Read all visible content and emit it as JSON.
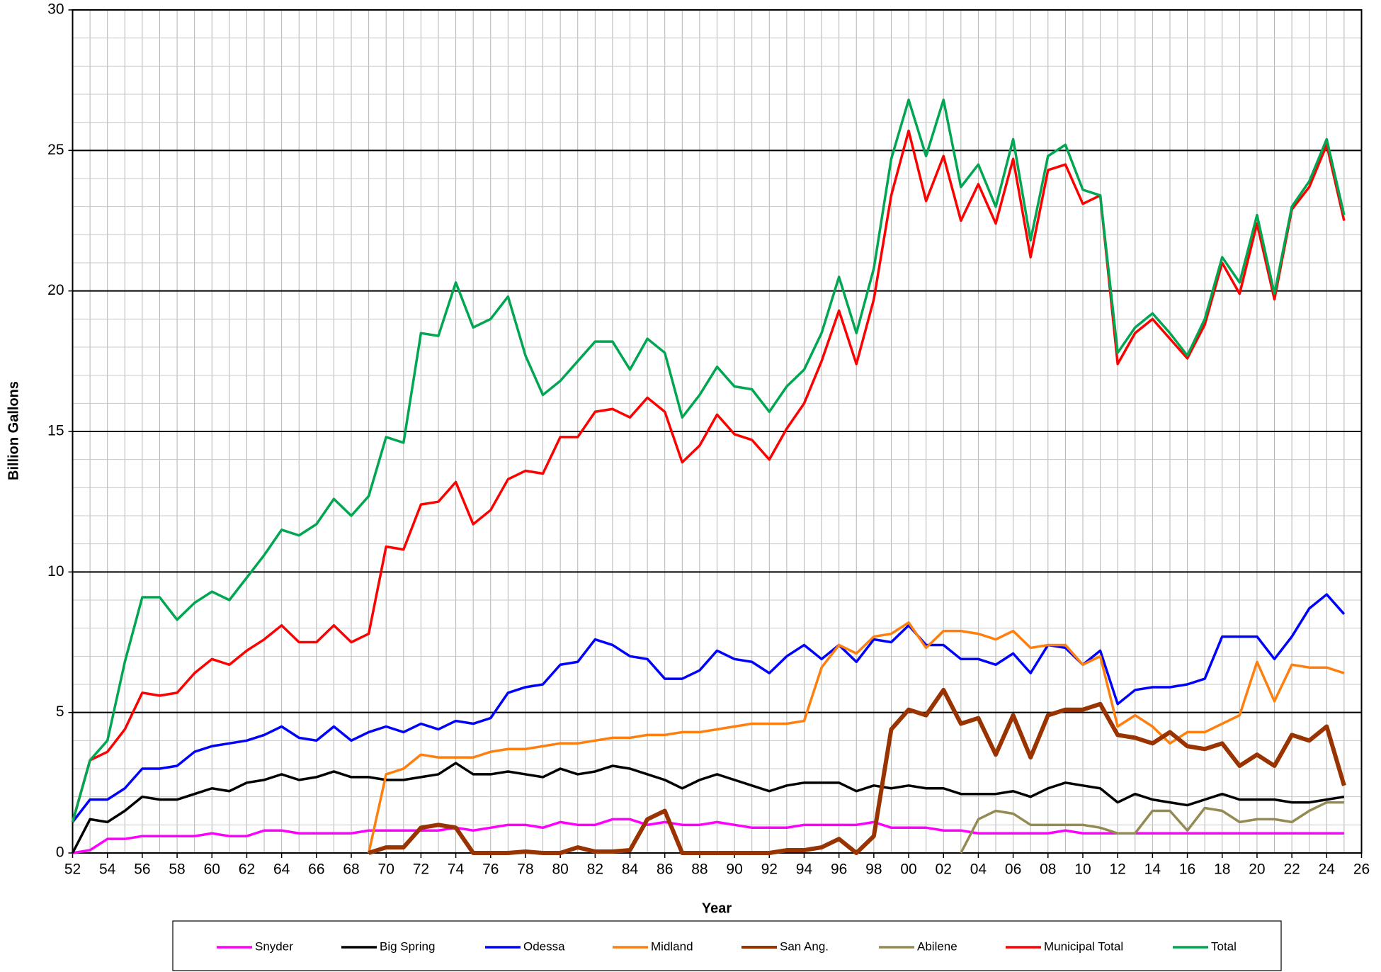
{
  "chart_data": {
    "type": "line",
    "xlabel": "Year",
    "ylabel": "Billion Gallons",
    "x": [
      1952,
      1953,
      1954,
      1955,
      1956,
      1957,
      1958,
      1959,
      1960,
      1961,
      1962,
      1963,
      1964,
      1965,
      1966,
      1967,
      1968,
      1969,
      1970,
      1971,
      1972,
      1973,
      1974,
      1975,
      1976,
      1977,
      1978,
      1979,
      1980,
      1981,
      1982,
      1983,
      1984,
      1985,
      1986,
      1987,
      1988,
      1989,
      1990,
      1991,
      1992,
      1993,
      1994,
      1995,
      1996,
      1997,
      1998,
      1999,
      2000,
      2001,
      2002,
      2003,
      2004,
      2005,
      2006,
      2007,
      2008,
      2009,
      2010,
      2011,
      2012,
      2013,
      2014,
      2015,
      2016,
      2017,
      2018,
      2019,
      2020,
      2021,
      2022,
      2023,
      2024,
      2025
    ],
    "series": [
      {
        "name": "Snyder",
        "color": "#ff00ff",
        "linewidth": 3.5,
        "values": [
          0,
          0.1,
          0.5,
          0.5,
          0.6,
          0.6,
          0.6,
          0.6,
          0.7,
          0.6,
          0.6,
          0.8,
          0.8,
          0.7,
          0.7,
          0.7,
          0.7,
          0.8,
          0.8,
          0.8,
          0.8,
          0.8,
          0.9,
          0.8,
          0.9,
          1.0,
          1.0,
          0.9,
          1.1,
          1.0,
          1.0,
          1.2,
          1.2,
          1.0,
          1.1,
          1.0,
          1.0,
          1.1,
          1.0,
          0.9,
          0.9,
          0.9,
          1.0,
          1.0,
          1.0,
          1.0,
          1.1,
          0.9,
          0.9,
          0.9,
          0.8,
          0.8,
          0.7,
          0.7,
          0.7,
          0.7,
          0.7,
          0.8,
          0.7,
          0.7,
          0.7,
          0.7,
          0.7,
          0.7,
          0.7,
          0.7,
          0.7,
          0.7,
          0.7,
          0.7,
          0.7,
          0.7,
          0.7,
          0.7
        ]
      },
      {
        "name": "Big Spring",
        "color": "#000000",
        "linewidth": 3.5,
        "values": [
          0,
          1.2,
          1.1,
          1.5,
          2.0,
          1.9,
          1.9,
          2.1,
          2.3,
          2.2,
          2.5,
          2.6,
          2.8,
          2.6,
          2.7,
          2.9,
          2.7,
          2.7,
          2.6,
          2.6,
          2.7,
          2.8,
          3.2,
          2.8,
          2.8,
          2.9,
          2.8,
          2.7,
          3.0,
          2.8,
          2.9,
          3.1,
          3.0,
          2.8,
          2.6,
          2.3,
          2.6,
          2.8,
          2.6,
          2.4,
          2.2,
          2.4,
          2.5,
          2.5,
          2.5,
          2.2,
          2.4,
          2.3,
          2.4,
          2.3,
          2.3,
          2.1,
          2.1,
          2.1,
          2.2,
          2.0,
          2.3,
          2.5,
          2.4,
          2.3,
          1.8,
          2.1,
          1.9,
          1.8,
          1.7,
          1.9,
          2.1,
          1.9,
          1.9,
          1.9,
          1.8,
          1.8,
          1.9,
          2.0
        ]
      },
      {
        "name": "Odessa",
        "color": "#0000ff",
        "linewidth": 3.5,
        "values": [
          1.1,
          1.9,
          1.9,
          2.3,
          3.0,
          3.0,
          3.1,
          3.6,
          3.8,
          3.9,
          4.0,
          4.2,
          4.5,
          4.1,
          4.0,
          4.5,
          4.0,
          4.3,
          4.5,
          4.3,
          4.6,
          4.4,
          4.7,
          4.6,
          4.8,
          5.7,
          5.9,
          6.0,
          6.7,
          6.8,
          7.6,
          7.4,
          7.0,
          6.9,
          6.2,
          6.2,
          6.5,
          7.2,
          6.9,
          6.8,
          6.4,
          7.0,
          7.4,
          6.9,
          7.4,
          6.8,
          7.6,
          7.5,
          8.1,
          7.4,
          7.4,
          6.9,
          6.9,
          6.7,
          7.1,
          6.4,
          7.4,
          7.3,
          6.7,
          7.2,
          5.3,
          5.8,
          5.9,
          5.9,
          6.0,
          6.2,
          7.7,
          7.7,
          7.7,
          6.9,
          7.7,
          8.7,
          9.2,
          8.5
        ]
      },
      {
        "name": "Midland",
        "color": "#ff7f0e",
        "linewidth": 3.5,
        "values": [
          null,
          null,
          null,
          null,
          null,
          null,
          null,
          null,
          null,
          null,
          null,
          null,
          null,
          null,
          null,
          null,
          null,
          0,
          2.8,
          3.0,
          3.5,
          3.4,
          3.4,
          3.4,
          3.6,
          3.7,
          3.7,
          3.8,
          3.9,
          3.9,
          4.0,
          4.1,
          4.1,
          4.2,
          4.2,
          4.3,
          4.3,
          4.4,
          4.5,
          4.6,
          4.6,
          4.6,
          4.7,
          6.6,
          7.4,
          7.1,
          7.7,
          7.8,
          8.2,
          7.3,
          7.9,
          7.9,
          7.8,
          7.6,
          7.9,
          7.3,
          7.4,
          7.4,
          6.7,
          7.0,
          4.5,
          4.9,
          4.5,
          3.9,
          4.3,
          4.3,
          4.6,
          4.9,
          6.8,
          5.4,
          6.7,
          6.6,
          6.6,
          6.4
        ]
      },
      {
        "name": "San Ang.",
        "color": "#993300",
        "linewidth": 6,
        "values": [
          null,
          null,
          null,
          null,
          null,
          null,
          null,
          null,
          null,
          null,
          null,
          null,
          null,
          null,
          null,
          null,
          null,
          0,
          0.2,
          0.2,
          0.9,
          1.0,
          0.9,
          0,
          0,
          0,
          0.05,
          0,
          0,
          0.2,
          0.05,
          0.05,
          0.1,
          1.2,
          1.5,
          0,
          0,
          0,
          0,
          0,
          0,
          0.1,
          0.1,
          0.2,
          0.5,
          0,
          0.6,
          4.4,
          5.1,
          4.9,
          5.8,
          4.6,
          4.8,
          3.5,
          4.9,
          3.4,
          4.9,
          5.1,
          5.1,
          5.3,
          4.2,
          4.1,
          3.9,
          4.3,
          3.8,
          3.7,
          3.9,
          3.1,
          3.5,
          3.1,
          4.2,
          4.0,
          4.5,
          2.4
        ]
      },
      {
        "name": "Abilene",
        "color": "#948a54",
        "linewidth": 3.5,
        "values": [
          null,
          null,
          null,
          null,
          null,
          null,
          null,
          null,
          null,
          null,
          null,
          null,
          null,
          null,
          null,
          null,
          null,
          null,
          null,
          null,
          null,
          null,
          null,
          null,
          null,
          null,
          null,
          null,
          null,
          null,
          null,
          null,
          null,
          null,
          null,
          null,
          null,
          null,
          null,
          null,
          null,
          null,
          null,
          null,
          null,
          null,
          null,
          null,
          null,
          null,
          null,
          0,
          1.2,
          1.5,
          1.4,
          1.0,
          1.0,
          1.0,
          1.0,
          0.9,
          0.7,
          0.7,
          1.5,
          1.5,
          0.8,
          1.6,
          1.5,
          1.1,
          1.2,
          1.2,
          1.1,
          1.5,
          1.8,
          1.8
        ]
      },
      {
        "name": "Municipal Total",
        "color": "#ff0000",
        "linewidth": 3.5,
        "values": [
          1.1,
          3.3,
          3.6,
          4.4,
          5.7,
          5.6,
          5.7,
          6.4,
          6.9,
          6.7,
          7.2,
          7.6,
          8.1,
          7.5,
          7.5,
          8.1,
          7.5,
          7.8,
          10.9,
          10.8,
          12.4,
          12.5,
          13.2,
          11.7,
          12.2,
          13.3,
          13.6,
          13.5,
          14.8,
          14.8,
          15.7,
          15.8,
          15.5,
          16.2,
          15.7,
          13.9,
          14.5,
          15.6,
          14.9,
          14.7,
          14.0,
          15.1,
          16.0,
          17.5,
          19.3,
          17.4,
          19.7,
          23.4,
          25.7,
          23.2,
          24.8,
          22.5,
          23.8,
          22.4,
          24.7,
          21.2,
          24.3,
          24.5,
          23.1,
          23.4,
          17.4,
          18.5,
          19.0,
          18.3,
          17.6,
          18.8,
          21.0,
          19.9,
          22.4,
          19.7,
          22.9,
          23.7,
          25.2,
          22.5
        ]
      },
      {
        "name": "Total",
        "color": "#00a651",
        "linewidth": 3.5,
        "values": [
          1.1,
          3.3,
          4.0,
          6.8,
          9.1,
          9.1,
          8.3,
          8.9,
          9.3,
          9.0,
          9.8,
          10.6,
          11.5,
          11.3,
          11.7,
          12.6,
          12.0,
          12.7,
          14.8,
          14.6,
          18.5,
          18.4,
          20.3,
          18.7,
          19.0,
          19.8,
          17.7,
          16.3,
          16.8,
          17.5,
          18.2,
          18.2,
          17.2,
          18.3,
          17.8,
          15.5,
          16.3,
          17.3,
          16.6,
          16.5,
          15.7,
          16.6,
          17.2,
          18.5,
          20.5,
          18.5,
          20.8,
          24.7,
          26.8,
          24.8,
          26.8,
          23.7,
          24.5,
          23.0,
          25.4,
          21.8,
          24.8,
          25.2,
          23.6,
          23.4,
          17.8,
          18.7,
          19.2,
          18.5,
          17.7,
          19.0,
          21.2,
          20.3,
          22.7,
          19.9,
          23.0,
          23.9,
          25.4,
          22.7
        ]
      }
    ],
    "xlim": [
      1952,
      2026
    ],
    "xticks": [
      {
        "value": 1952,
        "label": "52"
      },
      {
        "value": 1954,
        "label": "54"
      },
      {
        "value": 1956,
        "label": "56"
      },
      {
        "value": 1958,
        "label": "58"
      },
      {
        "value": 1960,
        "label": "60"
      },
      {
        "value": 1962,
        "label": "62"
      },
      {
        "value": 1964,
        "label": "64"
      },
      {
        "value": 1966,
        "label": "66"
      },
      {
        "value": 1968,
        "label": "68"
      },
      {
        "value": 1970,
        "label": "70"
      },
      {
        "value": 1972,
        "label": "72"
      },
      {
        "value": 1974,
        "label": "74"
      },
      {
        "value": 1976,
        "label": "76"
      },
      {
        "value": 1978,
        "label": "78"
      },
      {
        "value": 1980,
        "label": "80"
      },
      {
        "value": 1982,
        "label": "82"
      },
      {
        "value": 1984,
        "label": "84"
      },
      {
        "value": 1986,
        "label": "86"
      },
      {
        "value": 1988,
        "label": "88"
      },
      {
        "value": 1990,
        "label": "90"
      },
      {
        "value": 1992,
        "label": "92"
      },
      {
        "value": 1994,
        "label": "94"
      },
      {
        "value": 1996,
        "label": "96"
      },
      {
        "value": 1998,
        "label": "98"
      },
      {
        "value": 2000,
        "label": "00"
      },
      {
        "value": 2002,
        "label": "02"
      },
      {
        "value": 2004,
        "label": "04"
      },
      {
        "value": 2006,
        "label": "06"
      },
      {
        "value": 2008,
        "label": "08"
      },
      {
        "value": 2010,
        "label": "10"
      },
      {
        "value": 2012,
        "label": "12"
      },
      {
        "value": 2014,
        "label": "14"
      },
      {
        "value": 2016,
        "label": "16"
      },
      {
        "value": 2018,
        "label": "18"
      },
      {
        "value": 2020,
        "label": "20"
      },
      {
        "value": 2022,
        "label": "22"
      },
      {
        "value": 2024,
        "label": "24"
      },
      {
        "value": 2026,
        "label": "26"
      }
    ],
    "ylim": [
      0,
      30
    ],
    "yticks": [
      0,
      5,
      10,
      15,
      20,
      25,
      30
    ],
    "grid": true,
    "legend": "bottom"
  }
}
